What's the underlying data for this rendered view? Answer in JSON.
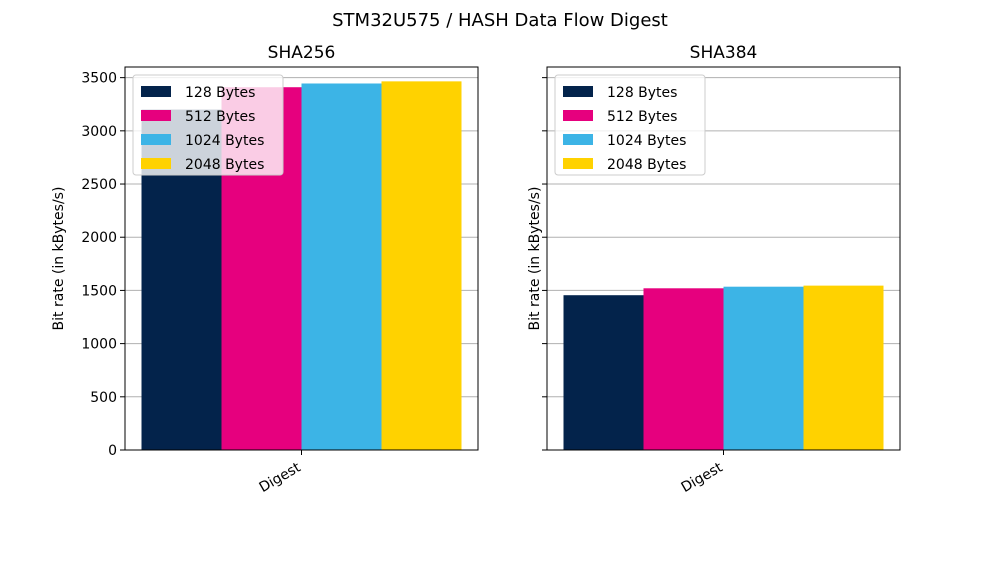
{
  "figure_title": "STM32U575 / HASH Data Flow Digest",
  "colors": {
    "128 Bytes": "#03234b",
    "512 Bytes": "#e6007e",
    "1024 Bytes": "#3cb4e6",
    "2048 Bytes": "#ffd200"
  },
  "chart_data": [
    {
      "type": "bar",
      "title": "SHA256",
      "xlabel": "",
      "ylabel": "Bit rate (in kBytes/s)",
      "categories": [
        "Digest"
      ],
      "ylim": [
        0,
        3600
      ],
      "yticks": [
        0,
        500,
        1000,
        1500,
        2000,
        2500,
        3000,
        3500
      ],
      "grid": true,
      "legend_position": "top-left",
      "series": [
        {
          "name": "128 Bytes",
          "values": [
            3200
          ]
        },
        {
          "name": "512 Bytes",
          "values": [
            3410
          ]
        },
        {
          "name": "1024 Bytes",
          "values": [
            3445
          ]
        },
        {
          "name": "2048 Bytes",
          "values": [
            3465
          ]
        }
      ]
    },
    {
      "type": "bar",
      "title": "SHA384",
      "xlabel": "",
      "ylabel": "Bit rate (in kBytes/s)",
      "categories": [
        "Digest"
      ],
      "ylim": [
        0,
        3600
      ],
      "yticks": [
        0,
        500,
        1000,
        1500,
        2000,
        2500,
        3000,
        3500
      ],
      "grid": true,
      "legend_position": "top-left",
      "series": [
        {
          "name": "128 Bytes",
          "values": [
            1455
          ]
        },
        {
          "name": "512 Bytes",
          "values": [
            1520
          ]
        },
        {
          "name": "1024 Bytes",
          "values": [
            1535
          ]
        },
        {
          "name": "2048 Bytes",
          "values": [
            1545
          ]
        }
      ]
    }
  ]
}
